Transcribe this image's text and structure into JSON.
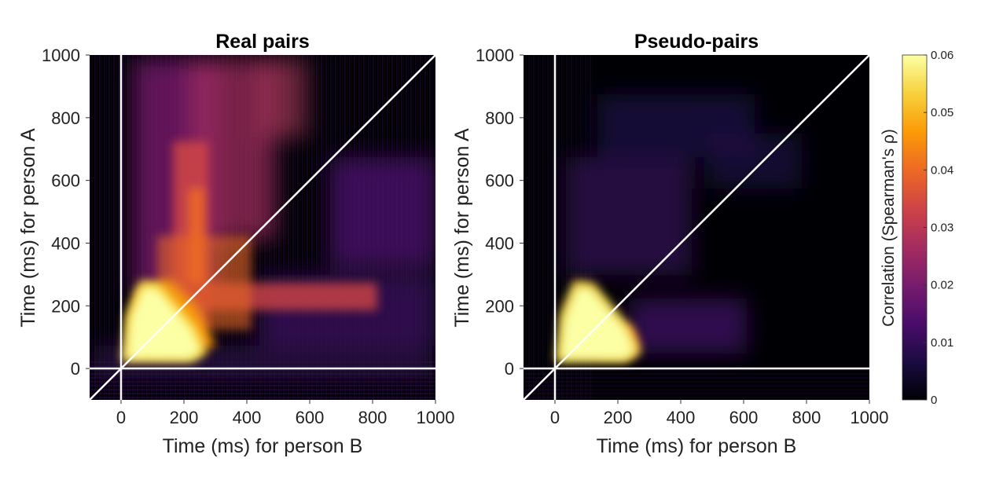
{
  "chart_data": [
    {
      "type": "heatmap",
      "title": "Real pairs",
      "xlabel": "Time (ms) for person B",
      "ylabel": "Time (ms) for person A",
      "xlim": [
        -100,
        1000
      ],
      "ylim": [
        -100,
        1000
      ],
      "x_ticks": [
        0,
        200,
        400,
        600,
        800,
        1000
      ],
      "y_ticks": [
        0,
        200,
        400,
        600,
        800,
        1000
      ],
      "x_tick_labels": [
        "0",
        "200",
        "400",
        "600",
        "800",
        "1000"
      ],
      "y_tick_labels": [
        "0",
        "200",
        "400",
        "600",
        "800",
        "1000"
      ],
      "reference_lines": {
        "x_zero": 0,
        "y_zero": 0,
        "diagonal": true
      },
      "regions": [
        {
          "x": 130,
          "y": 150,
          "value": 0.06
        },
        {
          "x": 250,
          "y": 230,
          "value": 0.045
        },
        {
          "x": 400,
          "y": 230,
          "value": 0.035
        },
        {
          "x": 250,
          "y": 700,
          "value": 0.03
        },
        {
          "x": 400,
          "y": 850,
          "value": 0.035
        },
        {
          "x": 800,
          "y": 350,
          "value": 0.02
        }
      ]
    },
    {
      "type": "heatmap",
      "title": "Pseudo-pairs",
      "xlabel": "Time (ms) for person B",
      "ylabel": "Time (ms) for person A",
      "xlim": [
        -100,
        1000
      ],
      "ylim": [
        -100,
        1000
      ],
      "x_ticks": [
        0,
        200,
        400,
        600,
        800,
        1000
      ],
      "y_ticks": [
        0,
        200,
        400,
        600,
        800,
        1000
      ],
      "x_tick_labels": [
        "0",
        "200",
        "400",
        "600",
        "800",
        "1000"
      ],
      "y_tick_labels": [
        "0",
        "200",
        "400",
        "600",
        "800",
        "1000"
      ],
      "reference_lines": {
        "x_zero": 0,
        "y_zero": 0,
        "diagonal": true
      },
      "regions": [
        {
          "x": 130,
          "y": 150,
          "value": 0.06
        },
        {
          "x": 250,
          "y": 120,
          "value": 0.02
        },
        {
          "x": 150,
          "y": 500,
          "value": 0.012
        },
        {
          "x": 550,
          "y": 150,
          "value": 0.012
        }
      ]
    }
  ],
  "colorbar": {
    "label": "Correlation (Spearman's ρ)",
    "range": [
      0,
      0.06
    ],
    "ticks": [
      0,
      0.01,
      0.02,
      0.03,
      0.04,
      0.05,
      0.06
    ],
    "tick_labels": [
      "0",
      "0.01",
      "0.02",
      "0.03",
      "0.04",
      "0.05",
      "0.06"
    ],
    "colormap": "inferno",
    "stops": [
      "#000004",
      "#1b0c41",
      "#4a0c6b",
      "#781c6d",
      "#a52c60",
      "#cf4446",
      "#ed6925",
      "#fb9b06",
      "#f7d13d",
      "#fcffa4"
    ]
  }
}
